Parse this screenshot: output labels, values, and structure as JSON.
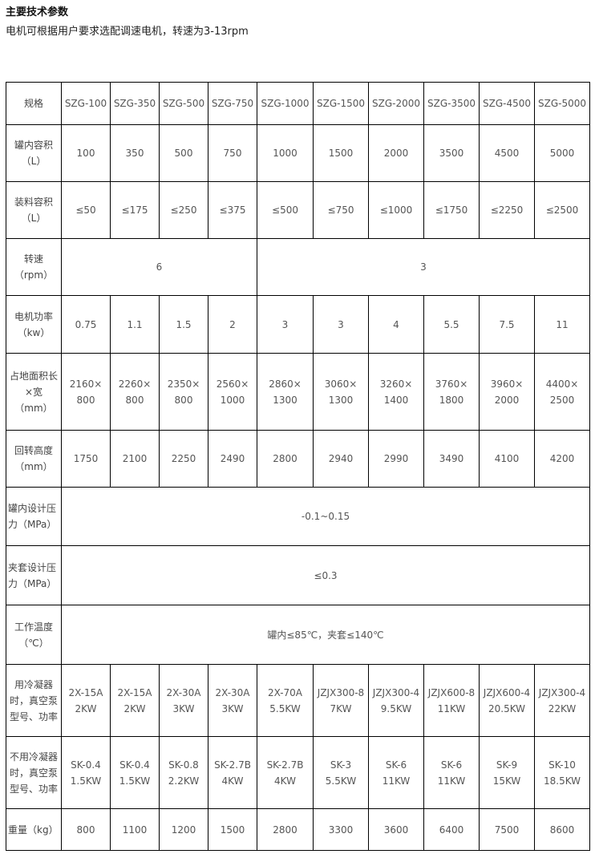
{
  "heading": "主要技术参数",
  "note": "电机可根据用户要求选配调速电机，转速为3-13rpm",
  "table": {
    "rows": [
      {
        "label": "规格",
        "cells": [
          {
            "value": "SZG-100"
          },
          {
            "value": "SZG-350"
          },
          {
            "value": "SZG-500"
          },
          {
            "value": "SZG-750"
          },
          {
            "value": "SZG-1000"
          },
          {
            "value": "SZG-1500"
          },
          {
            "value": "SZG-2000"
          },
          {
            "value": "SZG-3500"
          },
          {
            "value": "SZG-4500"
          },
          {
            "value": "SZG-5000"
          }
        ]
      },
      {
        "label": "罐内容积\n（L）",
        "cells": [
          {
            "value": "100"
          },
          {
            "value": "350"
          },
          {
            "value": "500"
          },
          {
            "value": "750"
          },
          {
            "value": "1000"
          },
          {
            "value": "1500"
          },
          {
            "value": "2000"
          },
          {
            "value": "3500"
          },
          {
            "value": "4500"
          },
          {
            "value": "5000"
          }
        ]
      },
      {
        "label": "装料容积\n（L）",
        "cells": [
          {
            "value": "≤50"
          },
          {
            "value": "≤175"
          },
          {
            "value": "≤250"
          },
          {
            "value": "≤375"
          },
          {
            "value": "≤500"
          },
          {
            "value": "≤750"
          },
          {
            "value": "≤1000"
          },
          {
            "value": "≤1750"
          },
          {
            "value": "≤2250"
          },
          {
            "value": "≤2500"
          }
        ]
      },
      {
        "label": "转速\n（rpm）",
        "cells": [
          {
            "value": "6",
            "span": 4
          },
          {
            "value": "3",
            "span": 6
          }
        ]
      },
      {
        "label": "电机功率\n（kw）",
        "cells": [
          {
            "value": "0.75"
          },
          {
            "value": "1.1"
          },
          {
            "value": "1.5"
          },
          {
            "value": "2"
          },
          {
            "value": "3"
          },
          {
            "value": "3"
          },
          {
            "value": "4"
          },
          {
            "value": "5.5"
          },
          {
            "value": "7.5"
          },
          {
            "value": "11"
          }
        ]
      },
      {
        "label": "占地面积长\n×宽\n（mm）",
        "cells": [
          {
            "value": "2160×\n800"
          },
          {
            "value": "2260×\n800"
          },
          {
            "value": "2350×\n800"
          },
          {
            "value": "2560×\n1000"
          },
          {
            "value": "2860×\n1300"
          },
          {
            "value": "3060×\n1300"
          },
          {
            "value": "3260×\n1400"
          },
          {
            "value": "3760×\n1800"
          },
          {
            "value": "3960×\n2000"
          },
          {
            "value": "4400×\n2500"
          }
        ]
      },
      {
        "label": "回转高度\n（mm）",
        "cells": [
          {
            "value": "1750"
          },
          {
            "value": "2100"
          },
          {
            "value": "2250"
          },
          {
            "value": "2490"
          },
          {
            "value": "2800"
          },
          {
            "value": "2940"
          },
          {
            "value": "2990"
          },
          {
            "value": "3490"
          },
          {
            "value": "4100"
          },
          {
            "value": "4200"
          }
        ]
      },
      {
        "label": "罐内设计压\n力（MPa）",
        "left": true,
        "cells": [
          {
            "value": "-0.1~0.15",
            "span": 10
          }
        ]
      },
      {
        "label": "夹套设计压\n力（MPa）",
        "left": true,
        "cells": [
          {
            "value": "≤0.3",
            "span": 10
          }
        ]
      },
      {
        "label": "工作温度\n（℃）",
        "cells": [
          {
            "value": "罐内≤85℃，夹套≤140℃",
            "span": 10
          }
        ]
      },
      {
        "label": "用冷凝器\n时，真空泵\n型号、功率",
        "cells": [
          {
            "value": "2X-15A\n2KW"
          },
          {
            "value": "2X-15A\n2KW"
          },
          {
            "value": "2X-30A\n3KW"
          },
          {
            "value": "2X-30A\n3KW"
          },
          {
            "value": "2X-70A\n5.5KW"
          },
          {
            "value": "JZJX300-8\n7KW"
          },
          {
            "value": "JZJX300-4\n9.5KW"
          },
          {
            "value": "JZJX600-8\n11KW"
          },
          {
            "value": "JZJX600-4\n20.5KW"
          },
          {
            "value": "JZJX300-4\n22KW"
          }
        ]
      },
      {
        "label": "不用冷凝器\n时，真空泵\n型号、功率",
        "cells": [
          {
            "value": "SK-0.4\n1.5KW"
          },
          {
            "value": "SK-0.4\n1.5KW"
          },
          {
            "value": "SK-0.8\n2.2KW"
          },
          {
            "value": "SK-2.7B\n4KW"
          },
          {
            "value": "SK-2.7B\n4KW"
          },
          {
            "value": "SK-3\n5.5KW"
          },
          {
            "value": "SK-6\n11KW"
          },
          {
            "value": "SK-6\n11KW"
          },
          {
            "value": "SK-9\n15KW"
          },
          {
            "value": "SK-10\n18.5KW"
          }
        ]
      },
      {
        "label": "重量（kg）",
        "left": true,
        "cells": [
          {
            "value": "800"
          },
          {
            "value": "1100"
          },
          {
            "value": "1200"
          },
          {
            "value": "1500"
          },
          {
            "value": "2800"
          },
          {
            "value": "3300"
          },
          {
            "value": "3600"
          },
          {
            "value": "6400"
          },
          {
            "value": "7500"
          },
          {
            "value": "8600"
          }
        ]
      }
    ]
  }
}
